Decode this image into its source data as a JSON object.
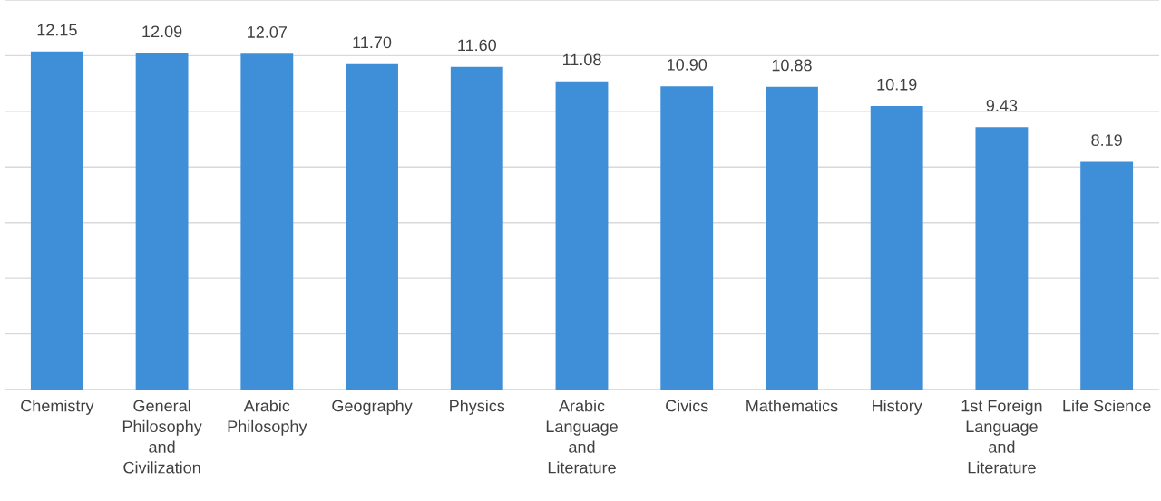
{
  "chart_data": {
    "type": "bar",
    "categories": [
      "Chemistry",
      "General\nPhilosophy\nand\nCivilization",
      "Arabic\nPhilosophy",
      "Geography",
      "Physics",
      "Arabic\nLanguage\nand\nLiterature",
      "Civics",
      "Mathematics",
      "History",
      "1st Foreign\nLanguage\nand\nLiterature",
      "Life Science"
    ],
    "values": [
      12.15,
      12.09,
      12.07,
      11.7,
      11.6,
      11.08,
      10.9,
      10.88,
      10.19,
      9.43,
      8.19
    ],
    "value_labels": [
      "12.15",
      "12.09",
      "12.07",
      "11.70",
      "11.60",
      "11.08",
      "10.90",
      "10.88",
      "10.19",
      "9.43",
      "8.19"
    ],
    "color": "#3f8fd8",
    "ylim": [
      0,
      14
    ],
    "yticks": [
      0,
      2,
      4,
      6,
      8,
      10,
      12,
      14
    ],
    "tick_labels": "x",
    "grid": "y"
  }
}
